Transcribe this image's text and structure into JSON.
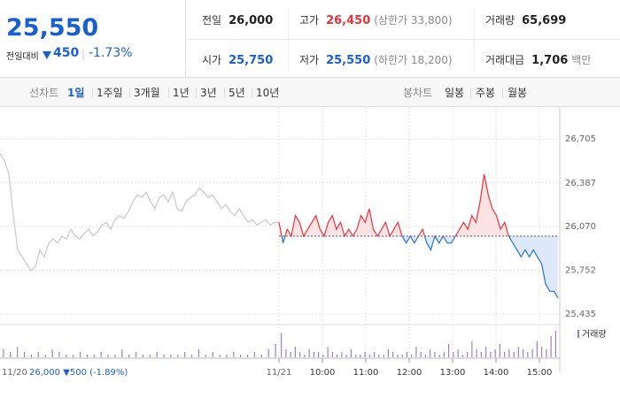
{
  "header": {
    "price": "25,550",
    "change_label": "전일대비",
    "change": "450",
    "change_pct": "-1.73%",
    "stats": [
      {
        "label": "전일",
        "value": "26,000",
        "color": "#222222"
      },
      {
        "label": "고가",
        "value": "26,450",
        "note": "(상한가 33,800)",
        "color": "#e8333a"
      },
      {
        "label": "거래량",
        "value": "65,699",
        "color": "#222222"
      },
      {
        "label": "시가",
        "value": "25,750",
        "color": "#1a5fd0"
      },
      {
        "label": "저가",
        "value": "25,550",
        "note": "(하한가 18,200)",
        "color": "#1a5fd0"
      },
      {
        "label": "거래대금",
        "value": "1,706",
        "note": "백만",
        "color": "#222222"
      }
    ]
  },
  "tabs": {
    "line_label": "선차트",
    "line_periods": [
      "1일",
      "1주일",
      "3개월",
      "1년",
      "3년",
      "5년",
      "10년"
    ],
    "candle_label": "봉차트",
    "candle_periods": [
      "일봉",
      "주봉",
      "월봉"
    ]
  },
  "chart_data": {
    "type": "line",
    "ylim": [
      25390,
      26880
    ],
    "yticks": [
      {
        "value": 26705,
        "label": "26,705"
      },
      {
        "value": 26387,
        "label": "26,387"
      },
      {
        "value": 26070,
        "label": "26,070"
      },
      {
        "value": 25752,
        "label": "25,752"
      },
      {
        "value": 25435,
        "label": "25,435"
      }
    ],
    "grid": true,
    "baseline": 26000,
    "prev_summary": "26,000 ▼500 (-1.89%)",
    "xtick_labels": [
      "10:00",
      "11:00",
      "12:00",
      "13:00",
      "14:00",
      "15:00"
    ],
    "series": [
      {
        "name": "11/20",
        "color": "#c8c8c8",
        "values": [
          26600,
          26550,
          26450,
          26150,
          25900,
          25850,
          25800,
          25750,
          25780,
          25900,
          25850,
          25950,
          25980,
          25950,
          26000,
          25980,
          26050,
          26000,
          25980,
          26020,
          26050,
          26000,
          26030,
          26080,
          26100,
          26050,
          26120,
          26150,
          26130,
          26180,
          26250,
          26300,
          26280,
          26320,
          26250,
          26200,
          26280,
          26300,
          26250,
          26320,
          26200,
          26180,
          26250,
          26280,
          26300,
          26350,
          26320,
          26280,
          26300,
          26250,
          26200,
          26230,
          26180,
          26150,
          26200,
          26150,
          26100,
          26120,
          26080,
          26100,
          26120,
          26080,
          26100,
          26100
        ]
      },
      {
        "name": "11/21",
        "color": "#e8333a",
        "color_down": "#2a6fd6",
        "values": [
          26100,
          25950,
          26050,
          26000,
          26150,
          26100,
          26000,
          26050,
          26100,
          26150,
          26050,
          26000,
          26100,
          26150,
          26050,
          26100,
          26000,
          26050,
          26000,
          26050,
          26150,
          26100,
          26200,
          26050,
          26000,
          26050,
          26100,
          26000,
          26050,
          26100,
          26000,
          25950,
          26000,
          25950,
          26000,
          26050,
          25950,
          25900,
          26000,
          25950,
          26000,
          25950,
          25950,
          26000,
          26050,
          26100,
          26050,
          26150,
          26100,
          26250,
          26450,
          26300,
          26200,
          26150,
          26050,
          26100,
          26000,
          25950,
          25900,
          25850,
          25900,
          25850,
          25900,
          25850,
          25800,
          25650,
          25600,
          25600,
          25550
        ]
      }
    ],
    "volume": {
      "name": "거래량",
      "color": "#9b7fc4",
      "prev_values": [
        3,
        2,
        4,
        2,
        1,
        2,
        1,
        3,
        2,
        1,
        1,
        2,
        1,
        1,
        2,
        1,
        1,
        3,
        1,
        2,
        1,
        1,
        2,
        1,
        1,
        1,
        2,
        1,
        3,
        1,
        2,
        1,
        1,
        2,
        1,
        1,
        2,
        1,
        3,
        5
      ],
      "values": [
        9,
        3,
        2,
        4,
        2,
        1,
        3,
        2,
        2,
        1,
        4,
        2,
        1,
        2,
        1,
        3,
        1,
        1,
        2,
        1,
        2,
        1,
        1,
        3,
        2,
        1,
        1,
        2,
        1,
        4,
        2,
        1,
        3,
        2,
        1,
        2,
        5,
        2,
        3,
        1,
        2,
        6,
        3,
        2,
        4,
        2,
        3,
        5,
        2,
        3,
        2,
        4,
        3,
        2,
        3,
        6,
        4,
        3,
        8,
        10
      ]
    }
  }
}
